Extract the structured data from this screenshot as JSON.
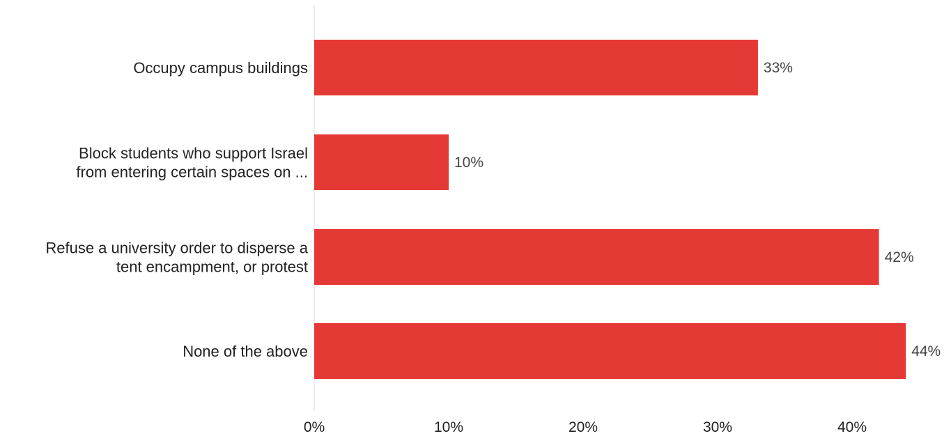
{
  "chart_data": {
    "type": "bar",
    "orientation": "horizontal",
    "categories": [
      [
        "Occupy campus buildings"
      ],
      [
        "Block students who support Israel",
        "from entering certain spaces on ..."
      ],
      [
        "Refuse a university order to disperse a",
        "tent encampment, or protest"
      ],
      [
        "None of the above"
      ]
    ],
    "values": [
      33,
      10,
      42,
      44
    ],
    "value_labels": [
      "33%",
      "10%",
      "42%",
      "44%"
    ],
    "x_ticks": [
      0,
      10,
      20,
      30,
      40
    ],
    "x_tick_labels": [
      "0%",
      "10%",
      "20%",
      "30%",
      "40%"
    ],
    "xlim": [
      0,
      45.6
    ],
    "title": "",
    "xlabel": "",
    "ylabel": "",
    "grid": false,
    "bar_color": "#e53935",
    "axis_color": "#d9d9d9"
  }
}
